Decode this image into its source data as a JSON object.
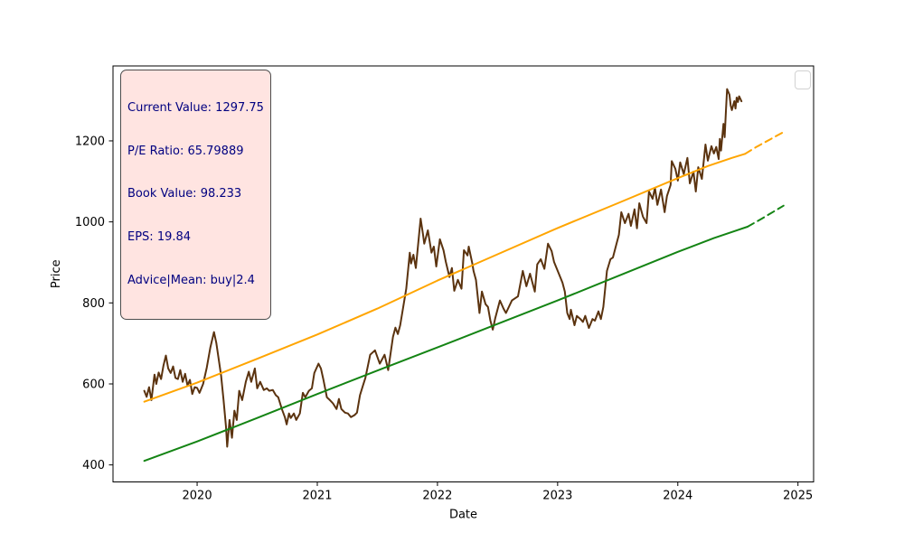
{
  "info_box": {
    "lines": [
      "Current Value: 1297.75",
      "P/E Ratio: 65.79889",
      "Book Value: 98.233",
      "EPS: 19.84",
      "Advice|Mean: buy|2.4"
    ],
    "text_color": "#000080",
    "background_color": "#ffe4e1",
    "border_color": "#4d4d4d"
  },
  "legend": {
    "visible": true,
    "entries": []
  },
  "chart_data": {
    "type": "line",
    "title": "",
    "xlabel": "Date",
    "ylabel": "Price",
    "xlim": [
      2019.3,
      2025.13
    ],
    "ylim": [
      358,
      1385
    ],
    "x_ticks": [
      2020,
      2021,
      2022,
      2023,
      2024,
      2025
    ],
    "y_ticks": [
      400,
      600,
      800,
      1000,
      1200
    ],
    "grid": false,
    "legend_position": "upper-right (empty)",
    "series": [
      {
        "name": "price",
        "color": "#5b330f",
        "width": 2,
        "style": "solid",
        "points": [
          [
            2019.56,
            583
          ],
          [
            2019.58,
            568
          ],
          [
            2019.6,
            592
          ],
          [
            2019.62,
            560
          ],
          [
            2019.645,
            623
          ],
          [
            2019.66,
            600
          ],
          [
            2019.68,
            628
          ],
          [
            2019.7,
            612
          ],
          [
            2019.72,
            645
          ],
          [
            2019.74,
            670
          ],
          [
            2019.76,
            638
          ],
          [
            2019.78,
            627
          ],
          [
            2019.8,
            643
          ],
          [
            2019.82,
            615
          ],
          [
            2019.84,
            612
          ],
          [
            2019.86,
            634
          ],
          [
            2019.88,
            605
          ],
          [
            2019.9,
            625
          ],
          [
            2019.92,
            596
          ],
          [
            2019.94,
            610
          ],
          [
            2019.96,
            575
          ],
          [
            2019.98,
            592
          ],
          [
            2020.0,
            590
          ],
          [
            2020.02,
            578
          ],
          [
            2020.05,
            600
          ],
          [
            2020.08,
            640
          ],
          [
            2020.11,
            690
          ],
          [
            2020.14,
            728
          ],
          [
            2020.16,
            701
          ],
          [
            2020.18,
            660
          ],
          [
            2020.2,
            620
          ],
          [
            2020.22,
            560
          ],
          [
            2020.24,
            494
          ],
          [
            2020.25,
            445
          ],
          [
            2020.27,
            511
          ],
          [
            2020.29,
            467
          ],
          [
            2020.31,
            534
          ],
          [
            2020.33,
            511
          ],
          [
            2020.35,
            583
          ],
          [
            2020.375,
            560
          ],
          [
            2020.405,
            605
          ],
          [
            2020.43,
            630
          ],
          [
            2020.45,
            605
          ],
          [
            2020.48,
            638
          ],
          [
            2020.5,
            589
          ],
          [
            2020.525,
            605
          ],
          [
            2020.555,
            585
          ],
          [
            2020.58,
            589
          ],
          [
            2020.6,
            583
          ],
          [
            2020.63,
            585
          ],
          [
            2020.655,
            572
          ],
          [
            2020.675,
            567
          ],
          [
            2020.705,
            538
          ],
          [
            2020.73,
            518
          ],
          [
            2020.745,
            500
          ],
          [
            2020.765,
            527
          ],
          [
            2020.78,
            516
          ],
          [
            2020.805,
            527
          ],
          [
            2020.825,
            511
          ],
          [
            2020.855,
            527
          ],
          [
            2020.88,
            578
          ],
          [
            2020.9,
            567
          ],
          [
            2020.93,
            583
          ],
          [
            2020.955,
            589
          ],
          [
            2020.975,
            627
          ],
          [
            2021.01,
            650
          ],
          [
            2021.03,
            638
          ],
          [
            2021.05,
            612
          ],
          [
            2021.08,
            567
          ],
          [
            2021.105,
            560
          ],
          [
            2021.13,
            552
          ],
          [
            2021.16,
            538
          ],
          [
            2021.18,
            563
          ],
          [
            2021.2,
            538
          ],
          [
            2021.23,
            529
          ],
          [
            2021.255,
            527
          ],
          [
            2021.28,
            518
          ],
          [
            2021.31,
            523
          ],
          [
            2021.33,
            529
          ],
          [
            2021.355,
            572
          ],
          [
            2021.38,
            596
          ],
          [
            2021.4,
            615
          ],
          [
            2021.44,
            672
          ],
          [
            2021.48,
            683
          ],
          [
            2021.52,
            650
          ],
          [
            2021.56,
            672
          ],
          [
            2021.59,
            634
          ],
          [
            2021.63,
            716
          ],
          [
            2021.65,
            739
          ],
          [
            2021.67,
            723
          ],
          [
            2021.69,
            745
          ],
          [
            2021.74,
            835
          ],
          [
            2021.77,
            924
          ],
          [
            2021.78,
            897
          ],
          [
            2021.8,
            919
          ],
          [
            2021.82,
            886
          ],
          [
            2021.86,
            1008
          ],
          [
            2021.88,
            968
          ],
          [
            2021.89,
            946
          ],
          [
            2021.92,
            979
          ],
          [
            2021.95,
            924
          ],
          [
            2021.97,
            939
          ],
          [
            2021.99,
            890
          ],
          [
            2022.02,
            957
          ],
          [
            2022.05,
            930
          ],
          [
            2022.07,
            901
          ],
          [
            2022.1,
            864
          ],
          [
            2022.12,
            886
          ],
          [
            2022.14,
            830
          ],
          [
            2022.17,
            857
          ],
          [
            2022.2,
            835
          ],
          [
            2022.22,
            930
          ],
          [
            2022.25,
            917
          ],
          [
            2022.26,
            939
          ],
          [
            2022.29,
            897
          ],
          [
            2022.3,
            879
          ],
          [
            2022.32,
            857
          ],
          [
            2022.35,
            775
          ],
          [
            2022.37,
            828
          ],
          [
            2022.4,
            797
          ],
          [
            2022.42,
            790
          ],
          [
            2022.44,
            757
          ],
          [
            2022.46,
            734
          ],
          [
            2022.48,
            761
          ],
          [
            2022.52,
            806
          ],
          [
            2022.55,
            786
          ],
          [
            2022.57,
            775
          ],
          [
            2022.62,
            806
          ],
          [
            2022.67,
            816
          ],
          [
            2022.71,
            879
          ],
          [
            2022.74,
            841
          ],
          [
            2022.77,
            872
          ],
          [
            2022.81,
            828
          ],
          [
            2022.83,
            895
          ],
          [
            2022.86,
            908
          ],
          [
            2022.89,
            884
          ],
          [
            2022.92,
            946
          ],
          [
            2022.95,
            928
          ],
          [
            2022.97,
            901
          ],
          [
            2023.01,
            872
          ],
          [
            2023.04,
            850
          ],
          [
            2023.06,
            828
          ],
          [
            2023.08,
            775
          ],
          [
            2023.1,
            760
          ],
          [
            2023.11,
            783
          ],
          [
            2023.14,
            745
          ],
          [
            2023.16,
            768
          ],
          [
            2023.19,
            760
          ],
          [
            2023.21,
            753
          ],
          [
            2023.23,
            768
          ],
          [
            2023.26,
            738
          ],
          [
            2023.29,
            760
          ],
          [
            2023.31,
            756
          ],
          [
            2023.34,
            779
          ],
          [
            2023.36,
            760
          ],
          [
            2023.38,
            790
          ],
          [
            2023.41,
            879
          ],
          [
            2023.44,
            908
          ],
          [
            2023.46,
            912
          ],
          [
            2023.49,
            946
          ],
          [
            2023.51,
            968
          ],
          [
            2023.53,
            1024
          ],
          [
            2023.56,
            997
          ],
          [
            2023.59,
            1020
          ],
          [
            2023.61,
            990
          ],
          [
            2023.64,
            1031
          ],
          [
            2023.66,
            984
          ],
          [
            2023.68,
            1046
          ],
          [
            2023.71,
            1013
          ],
          [
            2023.74,
            997
          ],
          [
            2023.76,
            1075
          ],
          [
            2023.79,
            1057
          ],
          [
            2023.81,
            1084
          ],
          [
            2023.83,
            1042
          ],
          [
            2023.86,
            1080
          ],
          [
            2023.89,
            1024
          ],
          [
            2023.91,
            1064
          ],
          [
            2023.94,
            1091
          ],
          [
            2023.95,
            1150
          ],
          [
            2023.98,
            1131
          ],
          [
            2024.0,
            1102
          ],
          [
            2024.02,
            1147
          ],
          [
            2024.05,
            1118
          ],
          [
            2024.08,
            1158
          ],
          [
            2024.1,
            1095
          ],
          [
            2024.13,
            1124
          ],
          [
            2024.15,
            1075
          ],
          [
            2024.17,
            1135
          ],
          [
            2024.2,
            1106
          ],
          [
            2024.23,
            1191
          ],
          [
            2024.25,
            1151
          ],
          [
            2024.28,
            1187
          ],
          [
            2024.3,
            1169
          ],
          [
            2024.32,
            1185
          ],
          [
            2024.34,
            1155
          ],
          [
            2024.35,
            1205
          ],
          [
            2024.36,
            1176
          ],
          [
            2024.38,
            1242
          ],
          [
            2024.39,
            1209
          ],
          [
            2024.4,
            1273
          ],
          [
            2024.41,
            1328
          ],
          [
            2024.43,
            1314
          ],
          [
            2024.44,
            1287
          ],
          [
            2024.45,
            1276
          ],
          [
            2024.47,
            1298
          ],
          [
            2024.48,
            1280
          ],
          [
            2024.49,
            1307
          ],
          [
            2024.5,
            1296
          ],
          [
            2024.51,
            1310
          ],
          [
            2024.53,
            1297.75
          ]
        ]
      },
      {
        "name": "upper-trend",
        "color": "#ffa500",
        "width": 2,
        "style": "solid",
        "points": [
          [
            2019.56,
            556
          ],
          [
            2020.0,
            603
          ],
          [
            2020.5,
            662
          ],
          [
            2021.0,
            722
          ],
          [
            2021.5,
            786
          ],
          [
            2022.0,
            855
          ],
          [
            2022.5,
            920
          ],
          [
            2023.0,
            985
          ],
          [
            2023.5,
            1046
          ],
          [
            2024.0,
            1108
          ],
          [
            2024.25,
            1138
          ],
          [
            2024.45,
            1158
          ],
          [
            2024.56,
            1168
          ]
        ]
      },
      {
        "name": "upper-trend-forecast",
        "color": "#ffa500",
        "width": 2,
        "style": "dashed",
        "points": [
          [
            2024.56,
            1168
          ],
          [
            2024.66,
            1186
          ],
          [
            2024.77,
            1204
          ],
          [
            2024.88,
            1222
          ]
        ]
      },
      {
        "name": "lower-trend",
        "color": "#148414",
        "width": 2,
        "style": "solid",
        "points": [
          [
            2019.56,
            410
          ],
          [
            2020.0,
            458
          ],
          [
            2020.5,
            516
          ],
          [
            2021.0,
            575
          ],
          [
            2021.5,
            633
          ],
          [
            2022.0,
            690
          ],
          [
            2022.5,
            748
          ],
          [
            2023.0,
            806
          ],
          [
            2023.5,
            866
          ],
          [
            2024.0,
            926
          ],
          [
            2024.3,
            960
          ],
          [
            2024.58,
            988
          ]
        ]
      },
      {
        "name": "lower-trend-forecast",
        "color": "#148414",
        "width": 2,
        "style": "dashed",
        "points": [
          [
            2024.58,
            988
          ],
          [
            2024.7,
            1008
          ],
          [
            2024.88,
            1040
          ]
        ]
      }
    ]
  }
}
